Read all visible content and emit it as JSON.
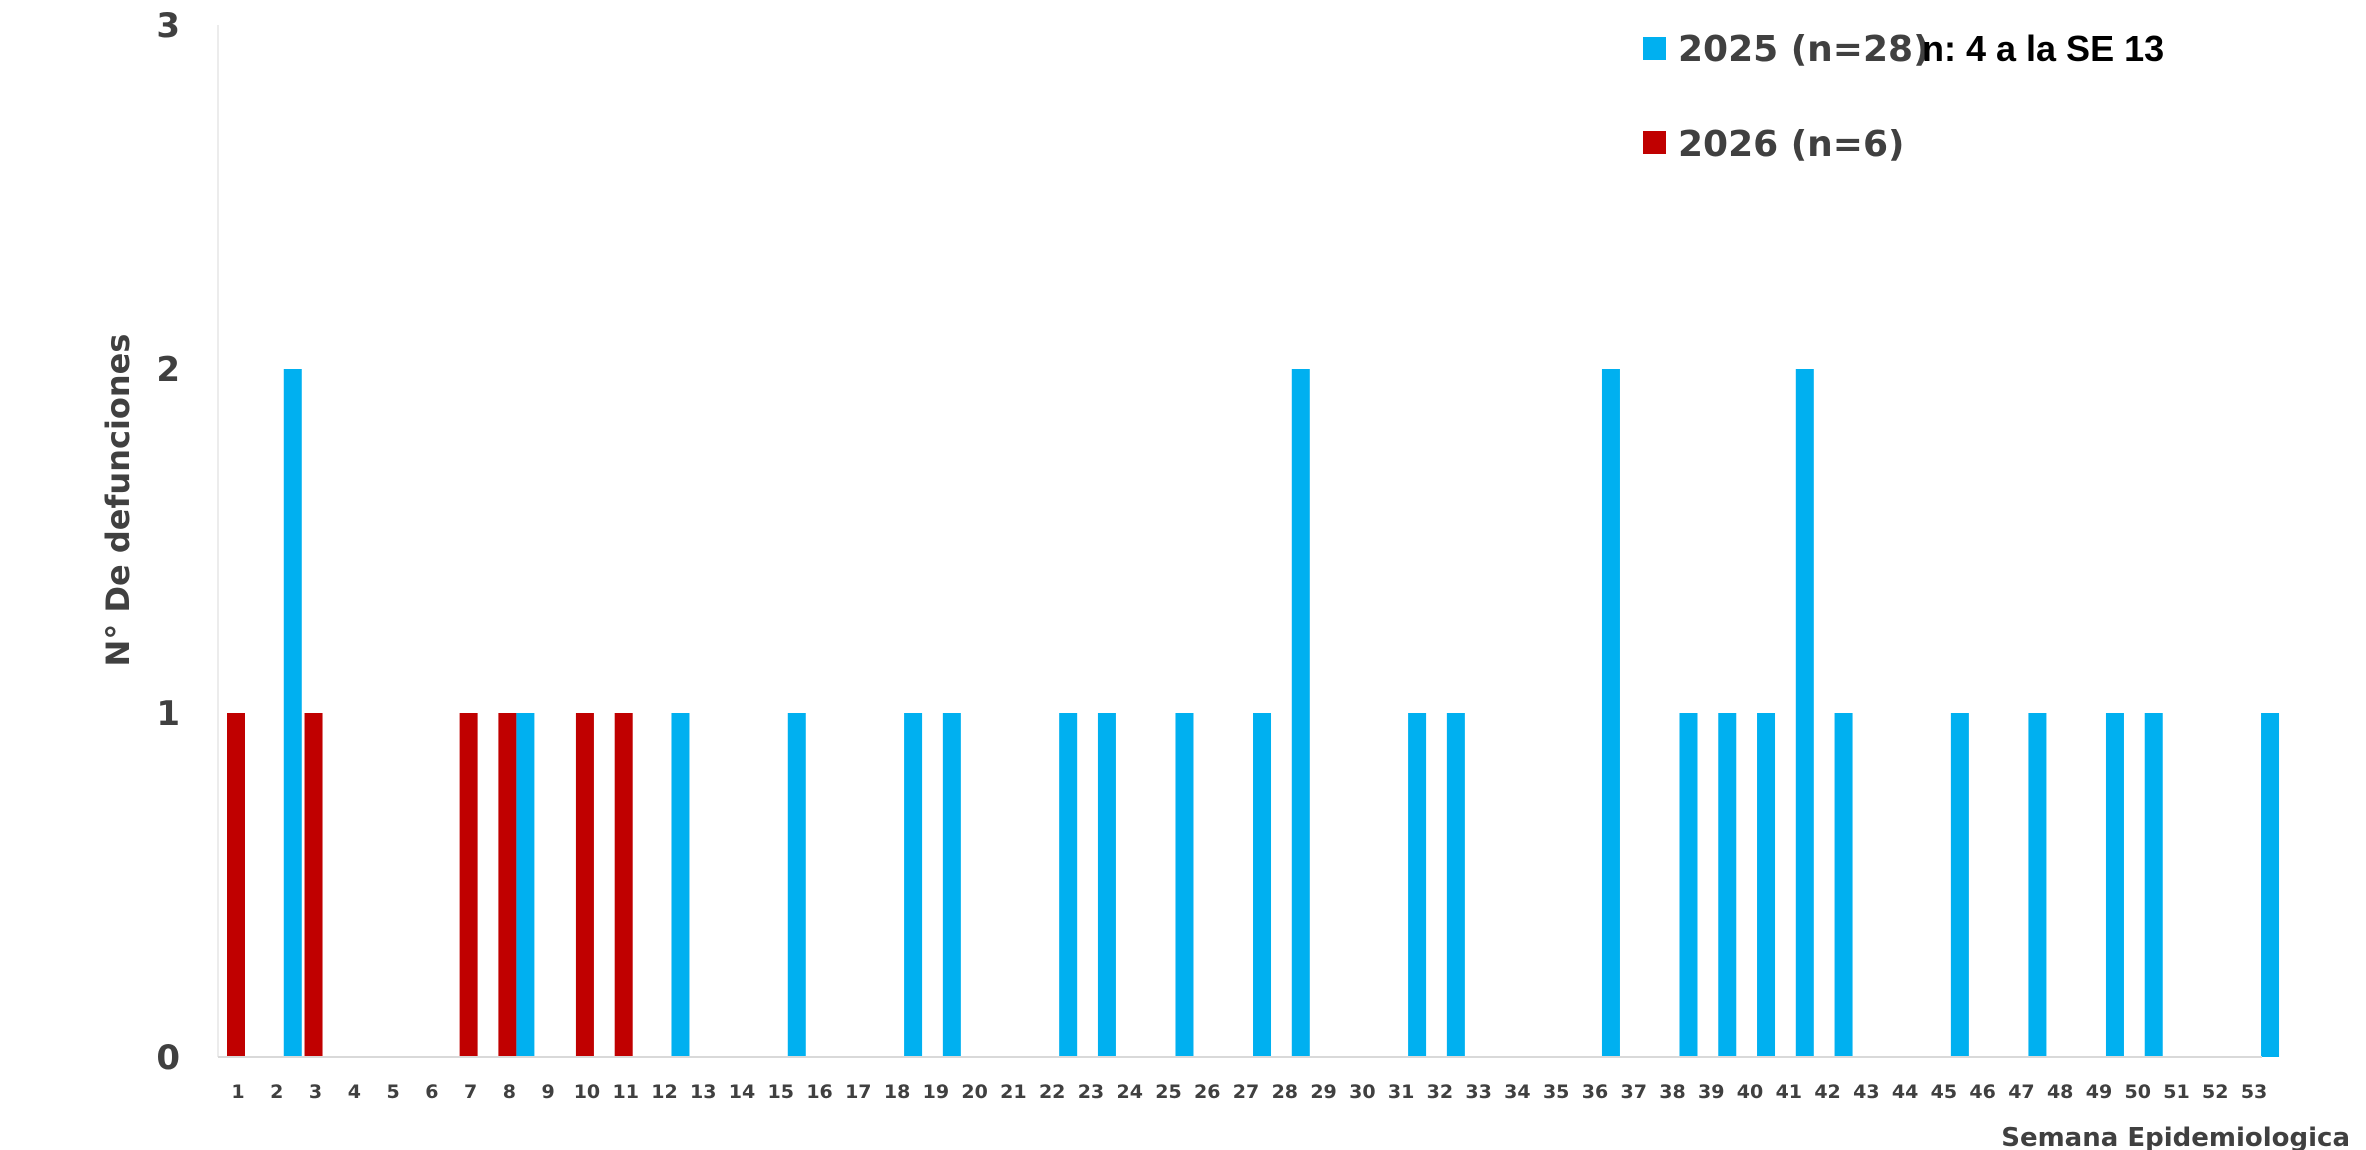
{
  "chart_data": {
    "type": "bar",
    "title": "",
    "xlabel": "Semana Epidemiologica",
    "ylabel": "N° De defunciones",
    "ylim": [
      0,
      3
    ],
    "yticks": [
      "0",
      "1",
      "2",
      "3"
    ],
    "categories": [
      "1",
      "2",
      "3",
      "4",
      "5",
      "6",
      "7",
      "8",
      "9",
      "10",
      "11",
      "12",
      "13",
      "14",
      "15",
      "16",
      "17",
      "18",
      "19",
      "20",
      "21",
      "22",
      "23",
      "24",
      "25",
      "26",
      "27",
      "28",
      "29",
      "30",
      "31",
      "32",
      "33",
      "34",
      "35",
      "36",
      "37",
      "38",
      "39",
      "40",
      "41",
      "42",
      "43",
      "44",
      "45",
      "46",
      "47",
      "48",
      "49",
      "50",
      "51",
      "52",
      "53"
    ],
    "series": [
      {
        "name": "2026 (n=6)",
        "color": "#C00000",
        "values": [
          1,
          0,
          1,
          0,
          0,
          0,
          1,
          1,
          0,
          1,
          1,
          0,
          0,
          0,
          0,
          0,
          0,
          0,
          0,
          0,
          0,
          0,
          0,
          0,
          0,
          0,
          0,
          0,
          0,
          0,
          0,
          0,
          0,
          0,
          0,
          0,
          0,
          0,
          0,
          0,
          0,
          0,
          0,
          0,
          0,
          0,
          0,
          0,
          0,
          0,
          0,
          0,
          0
        ]
      },
      {
        "name": "2025 (n=28)",
        "color": "#00B0F0",
        "values": [
          0,
          2,
          0,
          0,
          0,
          0,
          0,
          1,
          0,
          0,
          0,
          1,
          0,
          0,
          1,
          0,
          0,
          1,
          1,
          0,
          0,
          1,
          1,
          0,
          1,
          0,
          1,
          2,
          0,
          0,
          1,
          1,
          0,
          0,
          0,
          2,
          0,
          1,
          1,
          1,
          2,
          1,
          0,
          0,
          1,
          0,
          1,
          0,
          1,
          1,
          0,
          0,
          1
        ]
      }
    ],
    "legend": {
      "position": "top-right",
      "note": "n: 4  a la SE 13"
    },
    "grid": false
  }
}
